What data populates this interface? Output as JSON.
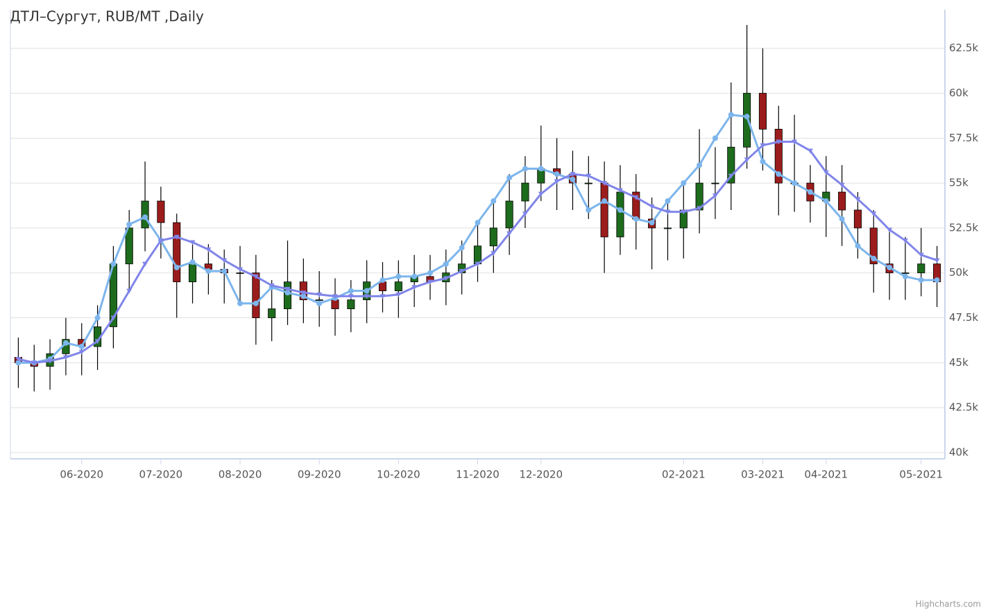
{
  "chart_data": {
    "type": "candlestick",
    "title": "ДТЛ–Сургут, RUB/MT ,Daily",
    "credits": "Highcharts.com",
    "categories": [
      null,
      null,
      null,
      null,
      "06-2020",
      null,
      null,
      null,
      null,
      "07-2020",
      null,
      null,
      null,
      null,
      "08-2020",
      null,
      null,
      null,
      null,
      "09-2020",
      null,
      null,
      null,
      null,
      "10-2020",
      null,
      null,
      null,
      null,
      "11-2020",
      null,
      null,
      null,
      "12-2020",
      null,
      null,
      null,
      null,
      null,
      null,
      null,
      null,
      "02-2021",
      null,
      null,
      null,
      null,
      "03-2021",
      null,
      null,
      null,
      "04-2021",
      null,
      null,
      null,
      null,
      null,
      "05-2021",
      null
    ],
    "open": [
      45300,
      45000,
      44800,
      45500,
      46300,
      45900,
      47000,
      50500,
      52500,
      54000,
      52800,
      49500,
      50500,
      50200,
      50000,
      50000,
      47500,
      48000,
      49500,
      48500,
      48500,
      48000,
      48500,
      49500,
      49000,
      49500,
      49800,
      49500,
      50000,
      50500,
      51500,
      52500,
      54000,
      55000,
      55800,
      55500,
      55000,
      55000,
      52000,
      54500,
      53000,
      52500,
      52500,
      53500,
      55000,
      55000,
      57000,
      60000,
      58000,
      55000,
      55000,
      54000,
      54500,
      53500,
      52500,
      50500,
      50000,
      50000,
      50500
    ],
    "high": [
      46400,
      46000,
      46300,
      47500,
      47200,
      48200,
      51500,
      53500,
      56200,
      54800,
      53300,
      51800,
      51600,
      51300,
      51500,
      51000,
      49600,
      51800,
      50800,
      50100,
      49700,
      49600,
      50700,
      50600,
      50700,
      51000,
      51000,
      51300,
      51800,
      52800,
      54000,
      55500,
      56500,
      58200,
      57500,
      56800,
      56500,
      56200,
      56000,
      55500,
      54200,
      54000,
      55000,
      58000,
      57000,
      60600,
      63800,
      62500,
      59300,
      58800,
      56000,
      56500,
      56000,
      54500,
      53500,
      52500,
      52000,
      52500,
      51500
    ],
    "low": [
      43600,
      43400,
      43500,
      44300,
      44300,
      44600,
      45800,
      49000,
      51200,
      50800,
      47500,
      48300,
      48800,
      48300,
      48300,
      46000,
      46200,
      47100,
      47200,
      47000,
      46500,
      46700,
      47200,
      47800,
      47500,
      48100,
      48500,
      48200,
      48800,
      49500,
      50000,
      51000,
      52500,
      54000,
      53500,
      53500,
      53000,
      50000,
      51000,
      51300,
      50200,
      50700,
      50800,
      52200,
      53000,
      53500,
      55800,
      55700,
      53200,
      53400,
      52800,
      52000,
      51500,
      50800,
      48900,
      48500,
      48500,
      48700,
      48100
    ],
    "close": [
      45000,
      44800,
      45500,
      46300,
      45900,
      47000,
      50500,
      52500,
      54000,
      52800,
      49500,
      50500,
      50200,
      50000,
      50000,
      47500,
      48000,
      49500,
      48500,
      48500,
      48000,
      48500,
      49500,
      49000,
      49500,
      49800,
      49500,
      50000,
      50500,
      51500,
      52500,
      54000,
      55000,
      55800,
      55500,
      55000,
      55000,
      52000,
      54500,
      53000,
      52500,
      52500,
      53500,
      55000,
      55000,
      57000,
      60000,
      58000,
      55000,
      55000,
      54000,
      54500,
      53500,
      52500,
      50500,
      50000,
      50000,
      50500,
      49500
    ],
    "up_color": "#1d6b1d",
    "down_color": "#9b1c1c",
    "lines": [
      {
        "color": "#7cb5ec",
        "marker": "circle",
        "values": [
          45000,
          45000,
          45200,
          46100,
          45900,
          47500,
          50500,
          52700,
          53100,
          51800,
          50300,
          50600,
          50100,
          50100,
          48300,
          48300,
          49200,
          48900,
          48700,
          48300,
          48600,
          49000,
          49000,
          49600,
          49800,
          49800,
          50000,
          50500,
          51400,
          52800,
          54000,
          55300,
          55800,
          55800,
          55500,
          55200,
          53500,
          54000,
          53500,
          53000,
          52800,
          54000,
          55000,
          56000,
          57500,
          58800,
          58700,
          56200,
          55500,
          55000,
          54500,
          54000,
          53000,
          51500,
          50800,
          50300,
          49800,
          49600,
          49600
        ]
      },
      {
        "color": "#8085e9",
        "marker": "triangle",
        "values": [
          45200,
          45000,
          45100,
          45300,
          45600,
          46200,
          47500,
          49000,
          50500,
          51800,
          52000,
          51700,
          51300,
          50700,
          50200,
          49800,
          49300,
          49100,
          48900,
          48800,
          48700,
          48700,
          48700,
          48700,
          48800,
          49200,
          49500,
          49700,
          50100,
          50500,
          51100,
          52200,
          53300,
          54400,
          55100,
          55500,
          55400,
          55000,
          54600,
          54200,
          53700,
          53400,
          53400,
          53600,
          54300,
          55400,
          56300,
          57100,
          57300,
          57300,
          56800,
          55600,
          54900,
          54100,
          53300,
          52400,
          51800,
          51000,
          50700
        ]
      }
    ],
    "ylim": [
      39650,
      64650
    ],
    "yticks": [
      {
        "value": 40000,
        "label": "40k"
      },
      {
        "value": 42500,
        "label": "42.5k"
      },
      {
        "value": 45000,
        "label": "45k"
      },
      {
        "value": 47500,
        "label": "47.5k"
      },
      {
        "value": 50000,
        "label": "50k"
      },
      {
        "value": 52500,
        "label": "52.5k"
      },
      {
        "value": 55000,
        "label": "55k"
      },
      {
        "value": 57500,
        "label": "57.5k"
      },
      {
        "value": 60000,
        "label": "60k"
      },
      {
        "value": 62500,
        "label": "62.5k"
      }
    ],
    "grid": true
  }
}
